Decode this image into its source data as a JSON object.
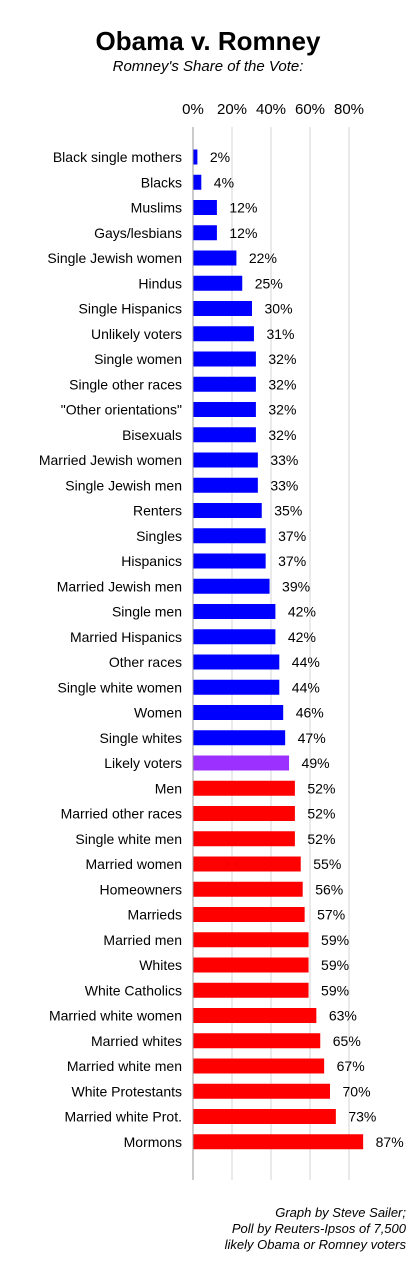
{
  "chart_data": {
    "type": "bar",
    "orientation": "horizontal",
    "title": "Obama v. Romney",
    "subtitle": "Romney's Share of the Vote:",
    "xlim": [
      0,
      80
    ],
    "x_ticks": [
      "0%",
      "20%",
      "40%",
      "60%",
      "80%"
    ],
    "tick_values": [
      0,
      20,
      40,
      60,
      80
    ],
    "grid": true,
    "colors": {
      "below_half": "#0000ff",
      "likely_voters": "#9b30ff",
      "above_half": "#ff0000"
    },
    "categories": [
      "Black single mothers",
      "Blacks",
      "Muslims",
      "Gays/lesbians",
      "Single Jewish women",
      "Hindus",
      "Single Hispanics",
      "Unlikely voters",
      "Single women",
      "Single other races",
      "\"Other orientations\"",
      "Bisexuals",
      "Married Jewish women",
      "Single Jewish men",
      "Renters",
      "Singles",
      "Hispanics",
      "Married Jewish men",
      "Single men",
      "Married Hispanics",
      "Other races",
      "Single white women",
      "Women",
      "Single whites",
      "Likely voters",
      "Men",
      "Married other races",
      "Single white men",
      "Married women",
      "Homeowners",
      "Marrieds",
      "Married men",
      "Whites",
      "White Catholics",
      "Married white women",
      "Married whites",
      "Married white men",
      "White Protestants",
      "Married white Prot.",
      "Mormons"
    ],
    "values": [
      2,
      4,
      12,
      12,
      22,
      25,
      30,
      31,
      32,
      32,
      32,
      32,
      33,
      33,
      35,
      37,
      37,
      39,
      42,
      42,
      44,
      44,
      46,
      47,
      49,
      52,
      52,
      52,
      55,
      56,
      57,
      59,
      59,
      59,
      63,
      65,
      67,
      70,
      73,
      87
    ],
    "value_labels": [
      "2%",
      "4%",
      "12%",
      "12%",
      "22%",
      "25%",
      "30%",
      "31%",
      "32%",
      "32%",
      "32%",
      "32%",
      "33%",
      "33%",
      "35%",
      "37%",
      "37%",
      "39%",
      "42%",
      "42%",
      "44%",
      "44%",
      "46%",
      "47%",
      "49%",
      "52%",
      "52%",
      "52%",
      "55%",
      "56%",
      "57%",
      "59%",
      "59%",
      "59%",
      "63%",
      "65%",
      "67%",
      "70%",
      "73%",
      "87%"
    ]
  },
  "credit": {
    "line1": "Graph by Steve Sailer;",
    "line2": "Poll by Reuters-Ipsos of 7,500",
    "line3": "likely Obama or Romney voters"
  }
}
